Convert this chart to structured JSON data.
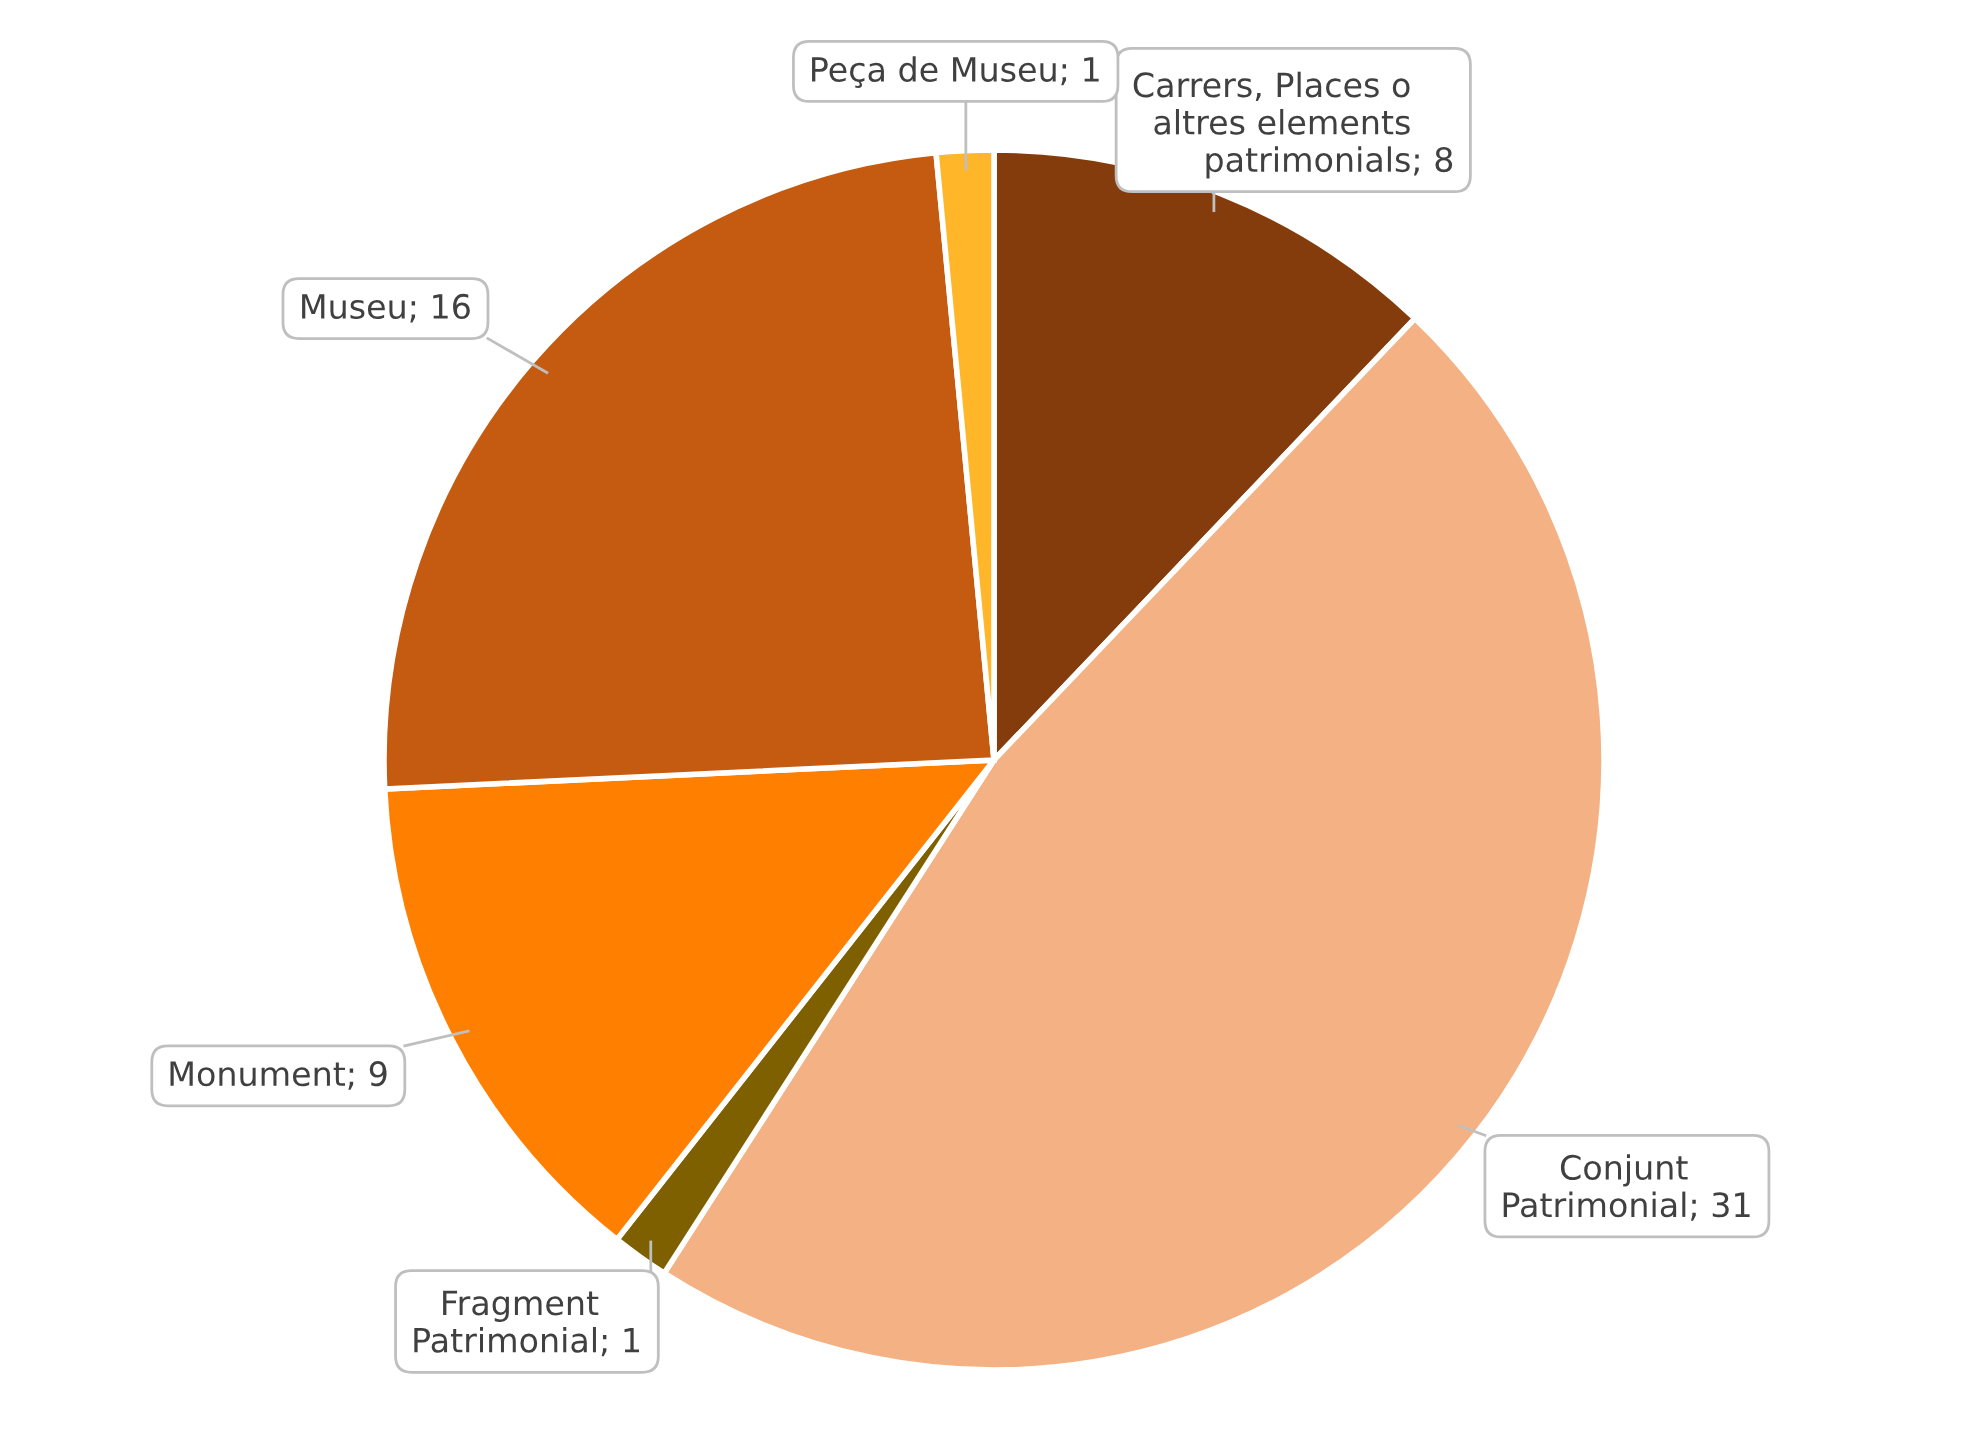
{
  "chart_data": {
    "type": "pie",
    "categories": [
      "Carrers, Places o altres elements patrimonials",
      "Conjunt Patrimonial",
      "Fragment Patrimonial",
      "Monument",
      "Museu",
      "Peça de Museu"
    ],
    "values": [
      8,
      31,
      1,
      9,
      16,
      1
    ],
    "colors": [
      "#843c0c",
      "#f4b183",
      "#7f6000",
      "#ff7f00",
      "#c55a11",
      "#ffb629"
    ],
    "value_labels": [
      "; 8",
      "; 31",
      "; 1",
      "; 9",
      "; 16",
      "; 1"
    ],
    "legend": false
  }
}
